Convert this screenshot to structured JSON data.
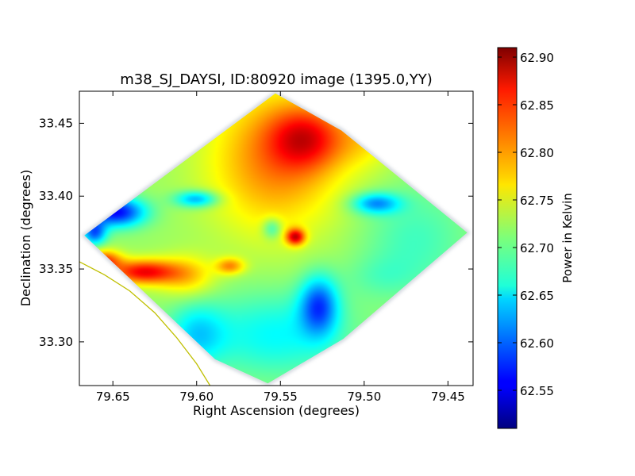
{
  "chart_data": {
    "type": "heatmap",
    "title": "m38_SJ_DAYSI, ID:80920 image (1395.0,YY)",
    "xlabel": "Right Ascension (degrees)",
    "ylabel": "Declination (degrees)",
    "colorbar_label": "Power in Kelvin",
    "colormap": "jet",
    "xlim": [
      79.67,
      79.435
    ],
    "ylim": [
      33.27,
      33.472
    ],
    "x_ticks": [
      {
        "value": 79.65,
        "label": "79.65"
      },
      {
        "value": 79.6,
        "label": "79.60"
      },
      {
        "value": 79.55,
        "label": "79.55"
      },
      {
        "value": 79.5,
        "label": "79.50"
      },
      {
        "value": 79.45,
        "label": "79.45"
      }
    ],
    "y_ticks": [
      {
        "value": 33.3,
        "label": "33.30"
      },
      {
        "value": 33.35,
        "label": "33.35"
      },
      {
        "value": 33.4,
        "label": "33.40"
      },
      {
        "value": 33.45,
        "label": "33.45"
      }
    ],
    "colorbar_range": [
      62.51,
      62.91
    ],
    "colorbar_ticks": [
      {
        "value": 62.55,
        "label": "62.55"
      },
      {
        "value": 62.6,
        "label": "62.60"
      },
      {
        "value": 62.65,
        "label": "62.65"
      },
      {
        "value": 62.7,
        "label": "62.70"
      },
      {
        "value": 62.75,
        "label": "62.75"
      },
      {
        "value": 62.8,
        "label": "62.80"
      },
      {
        "value": 62.85,
        "label": "62.85"
      },
      {
        "value": 62.9,
        "label": "62.90"
      }
    ],
    "footprint": [
      {
        "ra": 79.667,
        "dec": 33.373
      },
      {
        "ra": 79.553,
        "dec": 33.4705
      },
      {
        "ra": 79.5135,
        "dec": 33.445
      },
      {
        "ra": 79.4385,
        "dec": 33.375
      },
      {
        "ra": 79.5125,
        "dec": 33.302
      },
      {
        "ra": 79.5575,
        "dec": 33.2715
      },
      {
        "ra": 79.589,
        "dec": 33.288
      }
    ],
    "background_value": 62.72,
    "features": [
      {
        "ra": 79.553,
        "dec": 33.425,
        "value": 62.81,
        "sigma_ra": 0.028,
        "sigma_dec": 0.035
      },
      {
        "ra": 79.535,
        "dec": 33.44,
        "value": 62.815,
        "sigma_ra": 0.015,
        "sigma_dec": 0.015
      },
      {
        "ra": 79.632,
        "dec": 33.348,
        "value": 62.86,
        "sigma_ra": 0.014,
        "sigma_dec": 0.006
      },
      {
        "ra": 79.655,
        "dec": 33.356,
        "value": 62.83,
        "sigma_ra": 0.007,
        "sigma_dec": 0.005
      },
      {
        "ra": 79.606,
        "dec": 33.345,
        "value": 62.78,
        "sigma_ra": 0.012,
        "sigma_dec": 0.01
      },
      {
        "ra": 79.58,
        "dec": 33.352,
        "value": 62.8,
        "sigma_ra": 0.006,
        "sigma_dec": 0.004
      },
      {
        "ra": 79.541,
        "dec": 33.372,
        "value": 62.86,
        "sigma_ra": 0.004,
        "sigma_dec": 0.004
      },
      {
        "ra": 79.648,
        "dec": 33.389,
        "value": 62.56,
        "sigma_ra": 0.012,
        "sigma_dec": 0.007
      },
      {
        "ra": 79.661,
        "dec": 33.375,
        "value": 62.6,
        "sigma_ra": 0.005,
        "sigma_dec": 0.006
      },
      {
        "ra": 79.6,
        "dec": 33.398,
        "value": 62.62,
        "sigma_ra": 0.009,
        "sigma_dec": 0.004
      },
      {
        "ra": 79.493,
        "dec": 33.395,
        "value": 62.62,
        "sigma_ra": 0.01,
        "sigma_dec": 0.005
      },
      {
        "ra": 79.527,
        "dec": 33.325,
        "value": 62.6,
        "sigma_ra": 0.008,
        "sigma_dec": 0.014
      },
      {
        "ra": 79.553,
        "dec": 33.305,
        "value": 62.66,
        "sigma_ra": 0.03,
        "sigma_dec": 0.02
      },
      {
        "ra": 79.47,
        "dec": 33.37,
        "value": 62.685,
        "sigma_ra": 0.022,
        "sigma_dec": 0.025
      },
      {
        "ra": 79.6,
        "dec": 33.305,
        "value": 62.655,
        "sigma_ra": 0.012,
        "sigma_dec": 0.015
      },
      {
        "ra": 79.5,
        "dec": 33.44,
        "value": 62.76,
        "sigma_ra": 0.015,
        "sigma_dec": 0.015
      },
      {
        "ra": 79.555,
        "dec": 33.378,
        "value": 62.66,
        "sigma_ra": 0.004,
        "sigma_dec": 0.005
      },
      {
        "ra": 79.49,
        "dec": 33.345,
        "value": 62.7,
        "sigma_ra": 0.015,
        "sigma_dec": 0.01
      }
    ],
    "boundary_curve": {
      "color": "#bfbf00",
      "points": [
        {
          "ra": 79.67,
          "dec": 33.355
        },
        {
          "ra": 79.655,
          "dec": 33.346
        },
        {
          "ra": 79.64,
          "dec": 33.335
        },
        {
          "ra": 79.625,
          "dec": 33.32
        },
        {
          "ra": 79.612,
          "dec": 33.303
        },
        {
          "ra": 79.6,
          "dec": 33.285
        },
        {
          "ra": 79.592,
          "dec": 33.27
        }
      ]
    }
  }
}
